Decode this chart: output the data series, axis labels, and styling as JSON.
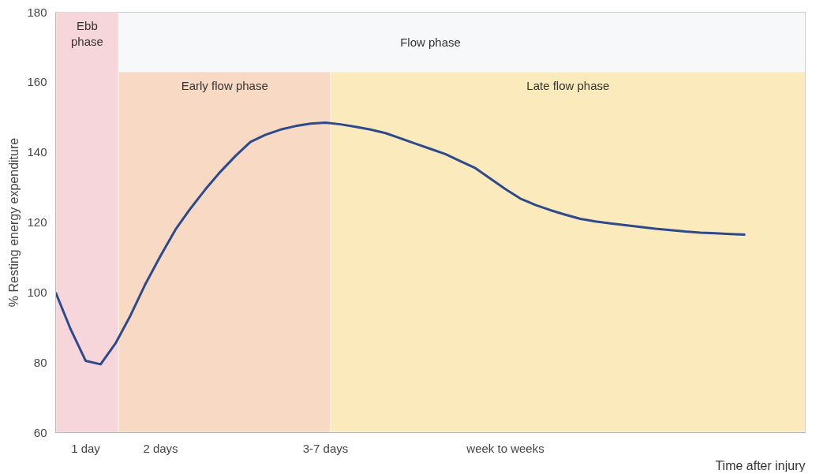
{
  "chart_data": {
    "type": "line",
    "ylabel": "% Resting energy expenditure",
    "xlabel": "Time after injury",
    "categories": [
      null,
      null,
      "1 day",
      null,
      null,
      null,
      null,
      "2 days",
      null,
      null,
      null,
      null,
      null,
      null,
      null,
      null,
      null,
      null,
      "3-7 days",
      null,
      null,
      null,
      null,
      null,
      null,
      null,
      null,
      null,
      null,
      null,
      "week to weeks",
      null,
      null,
      null,
      null,
      null,
      null,
      null,
      null,
      null,
      null,
      null,
      null,
      null,
      null,
      null,
      null
    ],
    "series": [
      {
        "color": "#2e4a8c",
        "values": [
          100,
          89.5,
          80.5,
          79.5,
          85.5,
          93.5,
          102.5,
          110.5,
          118,
          124,
          129.5,
          134.5,
          139,
          143,
          145,
          146.5,
          147.5,
          148.2,
          148.5,
          148,
          147.3,
          146.5,
          145.5,
          144,
          142.5,
          141,
          139.5,
          137.5,
          135.5,
          132.5,
          129.5,
          126.8,
          125,
          123.5,
          122.2,
          121,
          120.3,
          119.7,
          119.2,
          118.7,
          118.2,
          117.8,
          117.4,
          117.1,
          116.9,
          116.7,
          116.5
        ]
      }
    ],
    "ylim": [
      60,
      180
    ],
    "yticks": [
      60,
      80,
      100,
      120,
      140,
      160,
      180
    ],
    "bands": [
      {
        "axis": "y",
        "from": 163,
        "to": 180,
        "label": "Flow phase",
        "color": "#f7f8fa"
      }
    ],
    "annotations": [
      "Ebb phase",
      "Early flow phase",
      "Late flow phase"
    ],
    "grid": false,
    "marker": "none",
    "line_style": "solid"
  }
}
